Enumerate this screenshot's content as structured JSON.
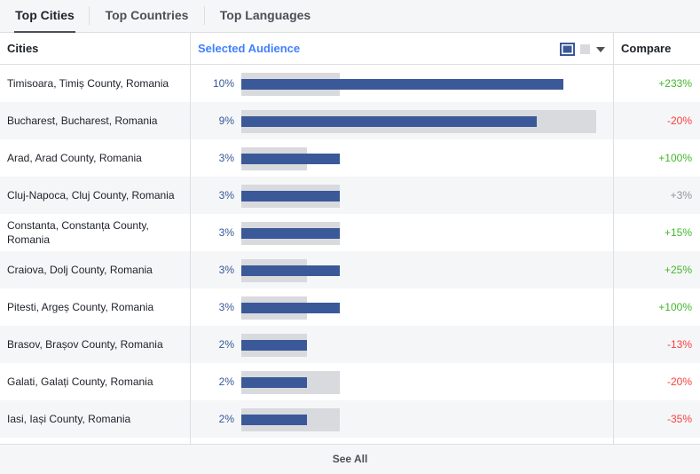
{
  "tabs": [
    {
      "label": "Top Cities",
      "active": true
    },
    {
      "label": "Top Countries",
      "active": false
    },
    {
      "label": "Top Languages",
      "active": false
    }
  ],
  "table": {
    "headers": {
      "cities": "Cities",
      "selected_audience": "Selected Audience",
      "compare": "Compare"
    },
    "legend": {
      "selected_color": "#3b5998",
      "baseline_color": "#d8dade",
      "dropdown_icon": "caret-down-icon"
    },
    "scale_max_percent": 10,
    "rows": [
      {
        "city": "Timisoara, Timiș County, Romania",
        "percent_label": "10%",
        "selected": 9.8,
        "baseline": 3.0,
        "compare": "+233%",
        "trend": "pos"
      },
      {
        "city": "Bucharest, Bucharest, Romania",
        "percent_label": "9%",
        "selected": 9.0,
        "baseline": 10.8,
        "compare": "-20%",
        "trend": "neg"
      },
      {
        "city": "Arad, Arad County, Romania",
        "percent_label": "3%",
        "selected": 3.0,
        "baseline": 2.0,
        "compare": "+100%",
        "trend": "pos"
      },
      {
        "city": "Cluj-Napoca, Cluj County, Romania",
        "percent_label": "3%",
        "selected": 3.0,
        "baseline": 3.0,
        "compare": "+3%",
        "trend": "neutral"
      },
      {
        "city": "Constanta, Constanța County, Romania",
        "percent_label": "3%",
        "selected": 3.0,
        "baseline": 3.0,
        "compare": "+15%",
        "trend": "pos"
      },
      {
        "city": "Craiova, Dolj County, Romania",
        "percent_label": "3%",
        "selected": 3.0,
        "baseline": 2.0,
        "compare": "+25%",
        "trend": "pos"
      },
      {
        "city": "Pitesti, Argeș County, Romania",
        "percent_label": "3%",
        "selected": 3.0,
        "baseline": 2.0,
        "compare": "+100%",
        "trend": "pos"
      },
      {
        "city": "Brasov, Brașov County, Romania",
        "percent_label": "2%",
        "selected": 2.0,
        "baseline": 2.0,
        "compare": "-13%",
        "trend": "neg"
      },
      {
        "city": "Galati, Galați County, Romania",
        "percent_label": "2%",
        "selected": 2.0,
        "baseline": 3.0,
        "compare": "-20%",
        "trend": "neg"
      },
      {
        "city": "Iasi, Iași County, Romania",
        "percent_label": "2%",
        "selected": 2.0,
        "baseline": 3.0,
        "compare": "-35%",
        "trend": "neg"
      }
    ]
  },
  "footer": {
    "see_all_label": "See All"
  }
}
